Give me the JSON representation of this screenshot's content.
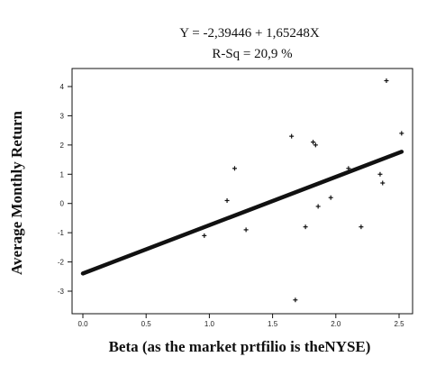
{
  "chart_data": {
    "type": "scatter",
    "title": "Y = -2,39446 + 1,65248X",
    "subtitle": "R-Sq = 20,9 %",
    "xlabel": "Beta (as the market prtfilio is theNYSE)",
    "ylabel": "Average Monthly Return",
    "xlim": [
      0.0,
      2.5
    ],
    "ylim": [
      -3,
      4
    ],
    "x_ticks": [
      0.0,
      0.5,
      1.0,
      1.5,
      2.0,
      2.5
    ],
    "x_tick_labels": [
      "0.0",
      "0.5",
      "1.0",
      "1.5",
      "2.0",
      "2.5"
    ],
    "y_ticks": [
      -3,
      -2,
      -1,
      0,
      1,
      2,
      3,
      4
    ],
    "y_tick_labels": [
      "-3",
      "-2",
      "-1",
      "0",
      "1",
      "2",
      "3",
      "4"
    ],
    "grid": false,
    "series": [
      {
        "type": "scatter",
        "marker": "plus",
        "color": "#111111",
        "points": [
          {
            "x": 0.96,
            "y": -1.1
          },
          {
            "x": 1.14,
            "y": 0.1
          },
          {
            "x": 1.2,
            "y": 1.2
          },
          {
            "x": 1.29,
            "y": -0.9
          },
          {
            "x": 1.65,
            "y": 2.3
          },
          {
            "x": 1.68,
            "y": -3.3
          },
          {
            "x": 1.76,
            "y": -0.8
          },
          {
            "x": 1.82,
            "y": 2.1
          },
          {
            "x": 1.84,
            "y": 2.0
          },
          {
            "x": 1.86,
            "y": -0.1
          },
          {
            "x": 1.96,
            "y": 0.2
          },
          {
            "x": 2.1,
            "y": 1.2
          },
          {
            "x": 2.2,
            "y": -0.8
          },
          {
            "x": 2.35,
            "y": 1.0
          },
          {
            "x": 2.37,
            "y": 0.7
          },
          {
            "x": 2.4,
            "y": 4.2
          },
          {
            "x": 2.52,
            "y": 2.4
          }
        ]
      },
      {
        "type": "line",
        "color": "#111111",
        "intercept": -2.39446,
        "slope": 1.65248,
        "x_range": [
          0.0,
          2.52
        ]
      }
    ]
  }
}
